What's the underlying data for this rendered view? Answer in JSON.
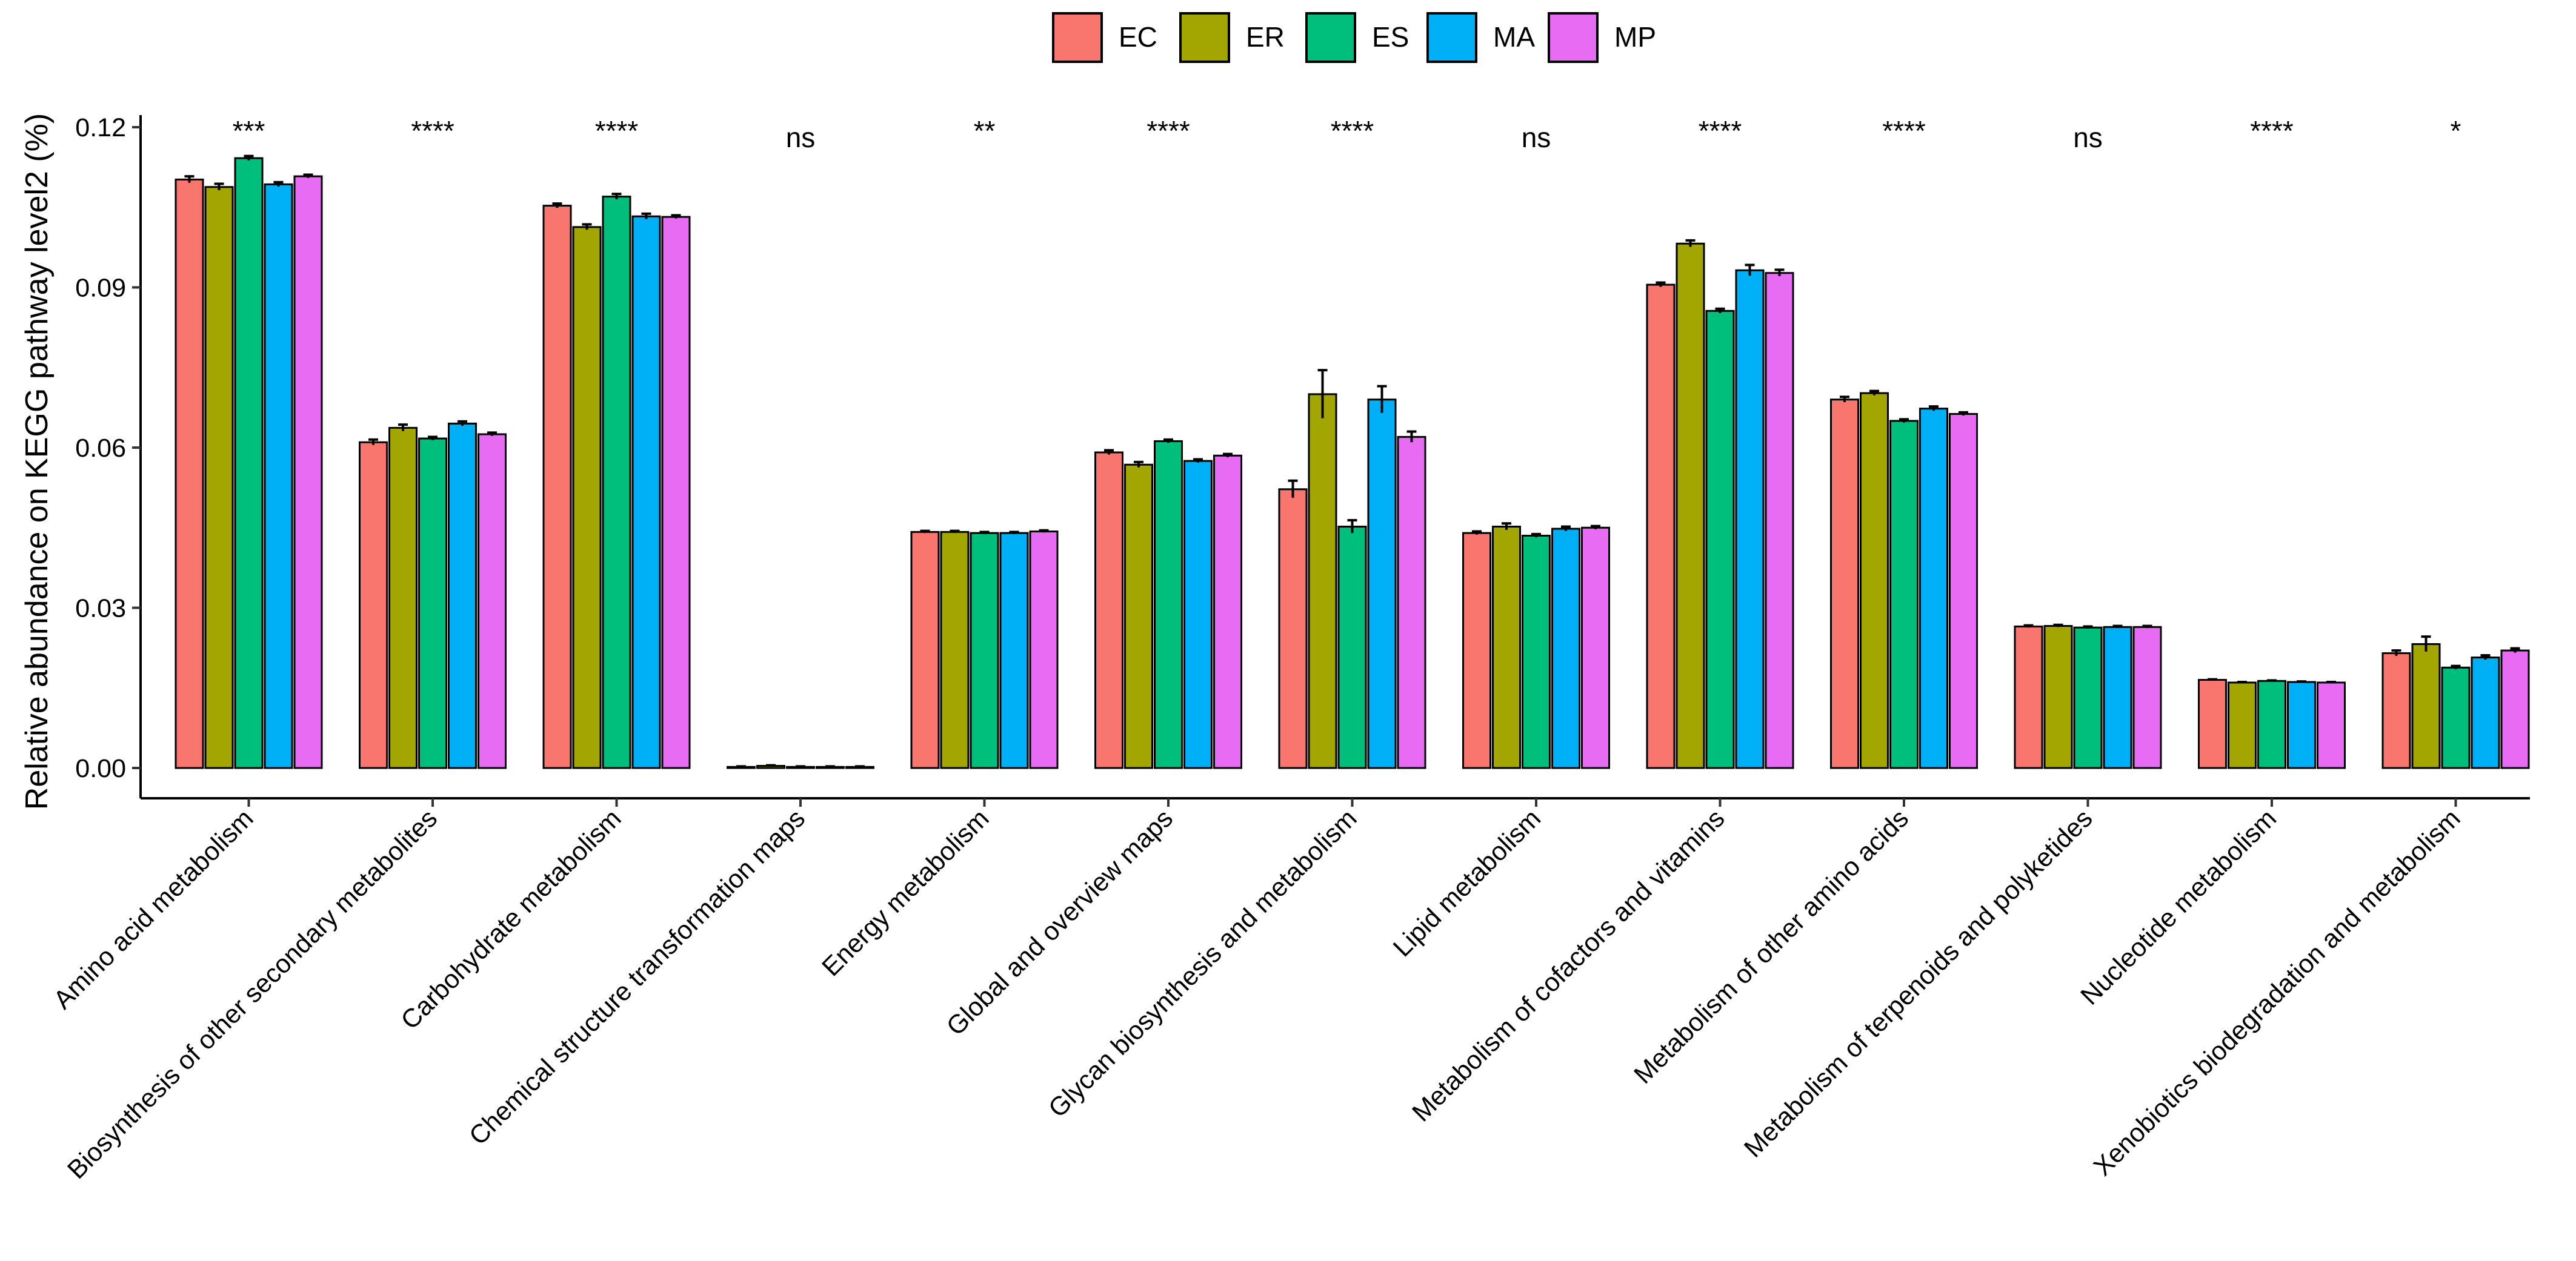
{
  "chart_data": {
    "type": "bar",
    "title": "",
    "xlabel": "",
    "ylabel": "Relative abundance on KEGG pathway level2 (%)",
    "ylim": [
      0,
      0.12
    ],
    "yticks": [
      "0.00",
      "0.03",
      "0.06",
      "0.09",
      "0.12"
    ],
    "ytick_values": [
      0,
      0.03,
      0.06,
      0.09,
      0.12
    ],
    "legend_position": "top",
    "categories": [
      "Amino acid metabolism",
      "Biosynthesis of other secondary metabolites",
      "Carbohydrate metabolism",
      "Chemical structure transformation maps",
      "Energy metabolism",
      "Global and overview maps",
      "Glycan biosynthesis and metabolism",
      "Lipid metabolism",
      "Metabolism of cofactors and vitamins",
      "Metabolism of other amino acids",
      "Metabolism of terpenoids and polyketides",
      "Nucleotide metabolism",
      "Xenobiotics biodegradation and metabolism"
    ],
    "significance": [
      "***",
      "****",
      "****",
      "ns",
      "**",
      "****",
      "****",
      "ns",
      "****",
      "****",
      "ns",
      "****",
      "*"
    ],
    "series": [
      {
        "name": "EC",
        "color": "#F8766D",
        "values": [
          0.1102,
          0.061,
          0.1053,
          0.0002,
          0.0442,
          0.0591,
          0.0522,
          0.044,
          0.0905,
          0.069,
          0.0265,
          0.0165,
          0.0215
        ],
        "errors": [
          0.0006,
          0.0005,
          0.0004,
          0.0001,
          0.0002,
          0.0004,
          0.0016,
          0.0003,
          0.0004,
          0.0005,
          0.0002,
          0.0001,
          0.0005
        ]
      },
      {
        "name": "ER",
        "color": "#A3A500",
        "values": [
          0.1088,
          0.0637,
          0.1013,
          0.0004,
          0.0442,
          0.0568,
          0.07,
          0.0452,
          0.0982,
          0.0702,
          0.0266,
          0.016,
          0.0232
        ],
        "errors": [
          0.0006,
          0.0006,
          0.0005,
          0.0001,
          0.0002,
          0.0005,
          0.0045,
          0.0006,
          0.0006,
          0.0004,
          0.0002,
          0.0001,
          0.0014
        ]
      },
      {
        "name": "ES",
        "color": "#00BF7D",
        "values": [
          0.1142,
          0.0617,
          0.107,
          0.0002,
          0.044,
          0.0612,
          0.0452,
          0.0435,
          0.0856,
          0.065,
          0.0263,
          0.0163,
          0.0188
        ],
        "errors": [
          0.0004,
          0.0003,
          0.0005,
          0.0001,
          0.0002,
          0.0003,
          0.0012,
          0.0003,
          0.0004,
          0.0003,
          0.0002,
          0.0001,
          0.0003
        ]
      },
      {
        "name": "MA",
        "color": "#00B0F6",
        "values": [
          0.1093,
          0.0645,
          0.1033,
          0.0002,
          0.044,
          0.0575,
          0.069,
          0.0448,
          0.0932,
          0.0673,
          0.0264,
          0.0161,
          0.0207
        ],
        "errors": [
          0.0004,
          0.0004,
          0.0005,
          0.0001,
          0.0002,
          0.0003,
          0.0025,
          0.0004,
          0.001,
          0.0004,
          0.0002,
          0.0001,
          0.0004
        ]
      },
      {
        "name": "MP",
        "color": "#E76BF3",
        "values": [
          0.1108,
          0.0625,
          0.1032,
          0.0002,
          0.0443,
          0.0585,
          0.062,
          0.045,
          0.0927,
          0.0663,
          0.0264,
          0.016,
          0.022
        ],
        "errors": [
          0.0003,
          0.0003,
          0.0003,
          0.0001,
          0.0002,
          0.0003,
          0.001,
          0.0003,
          0.0006,
          0.0003,
          0.0002,
          0.0001,
          0.0004
        ]
      }
    ]
  }
}
